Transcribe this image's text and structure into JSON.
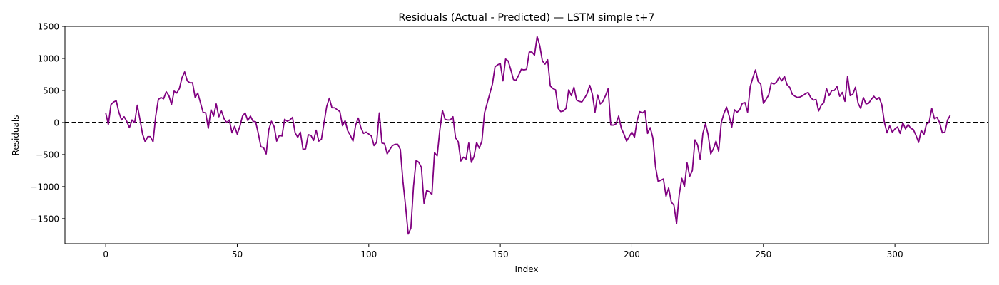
{
  "chart_data": {
    "type": "line",
    "title": "Residuals (Actual - Predicted) — LSTM simple t+7",
    "xlabel": "Index",
    "ylabel": "Residuals",
    "xlim": [
      -15.5,
      335.5
    ],
    "ylim": [
      -1890,
      1500
    ],
    "xticks": [
      0,
      50,
      100,
      150,
      200,
      250,
      300
    ],
    "yticks": [
      -1500,
      -1000,
      -500,
      0,
      500,
      1000,
      1500
    ],
    "grid": false,
    "line_color": "#800080",
    "reference_line": {
      "y": 0,
      "style": "dashed",
      "color": "#000000"
    },
    "series": [
      {
        "values": [
          150,
          -30,
          280,
          320,
          340,
          160,
          40,
          90,
          20,
          -80,
          40,
          0,
          270,
          50,
          -180,
          -300,
          -220,
          -220,
          -300,
          100,
          360,
          390,
          370,
          480,
          420,
          280,
          490,
          460,
          530,
          700,
          790,
          650,
          620,
          620,
          390,
          460,
          310,
          160,
          150,
          -90,
          200,
          100,
          290,
          90,
          180,
          60,
          0,
          40,
          -160,
          -60,
          -180,
          -60,
          100,
          150,
          30,
          100,
          20,
          10,
          -170,
          -380,
          -390,
          -490,
          -110,
          20,
          -60,
          -290,
          -200,
          -210,
          50,
          20,
          40,
          80,
          -160,
          -230,
          -150,
          -420,
          -410,
          -190,
          -200,
          -280,
          -120,
          -290,
          -260,
          0,
          250,
          380,
          230,
          230,
          200,
          170,
          -50,
          30,
          -130,
          -200,
          -290,
          -40,
          70,
          -80,
          -170,
          -150,
          -180,
          -210,
          -360,
          -310,
          150,
          -320,
          -330,
          -490,
          -420,
          -360,
          -340,
          -340,
          -420,
          -920,
          -1310,
          -1740,
          -1650,
          -1000,
          -590,
          -620,
          -700,
          -1260,
          -1060,
          -1080,
          -1120,
          -470,
          -520,
          -120,
          190,
          50,
          40,
          40,
          90,
          -240,
          -300,
          -600,
          -540,
          -570,
          -320,
          -620,
          -530,
          -310,
          -400,
          -290,
          150,
          300,
          450,
          600,
          870,
          900,
          920,
          650,
          990,
          960,
          820,
          670,
          660,
          740,
          830,
          820,
          830,
          1100,
          1100,
          1050,
          1340,
          1200,
          960,
          910,
          980,
          570,
          530,
          510,
          220,
          170,
          180,
          220,
          510,
          420,
          550,
          350,
          330,
          320,
          380,
          450,
          580,
          440,
          160,
          430,
          290,
          330,
          420,
          530,
          -40,
          -40,
          -20,
          100,
          -90,
          -180,
          -290,
          -220,
          -150,
          -230,
          30,
          170,
          150,
          180,
          -170,
          -80,
          -240,
          -690,
          -920,
          -900,
          -880,
          -1150,
          -1020,
          -1240,
          -1290,
          -1580,
          -1130,
          -870,
          -1000,
          -630,
          -840,
          -750,
          -270,
          -350,
          -580,
          -170,
          -20,
          -190,
          -490,
          -410,
          -290,
          -450,
          0,
          140,
          240,
          100,
          -70,
          200,
          160,
          200,
          300,
          310,
          160,
          560,
          700,
          820,
          640,
          600,
          300,
          360,
          430,
          620,
          600,
          630,
          710,
          650,
          720,
          590,
          550,
          440,
          410,
          390,
          400,
          420,
          450,
          470,
          390,
          350,
          360,
          180,
          270,
          310,
          530,
          420,
          500,
          500,
          560,
          410,
          470,
          330,
          720,
          420,
          440,
          550,
          300,
          220,
          390,
          290,
          300,
          360,
          410,
          360,
          390,
          280,
          0,
          -160,
          -50,
          -150,
          -100,
          -70,
          -170,
          0,
          -100,
          -30,
          -90,
          -110,
          -200,
          -310,
          -120,
          -190,
          -20,
          0,
          220,
          60,
          80,
          0,
          -160,
          -150,
          40,
          110
        ]
      }
    ]
  }
}
